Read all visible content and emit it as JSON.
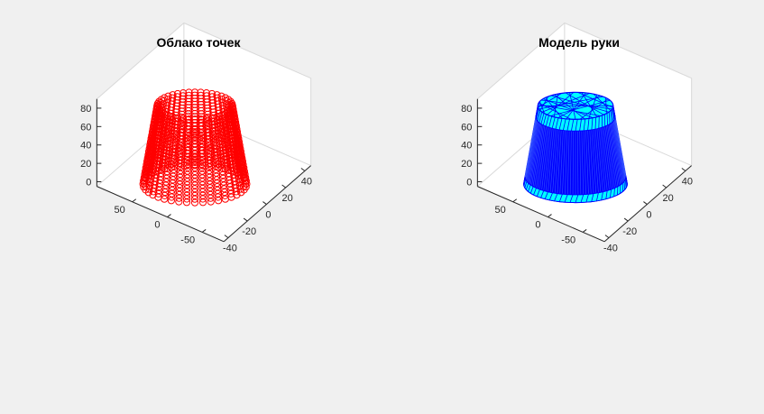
{
  "window": {
    "background": "#f0f0f0"
  },
  "colors": {
    "axes_bg": "#ffffff",
    "box": "#d9d9d9",
    "axis_line": "#262626",
    "points": "#ff0000",
    "mesh_fill": "#00ffff",
    "mesh_band": "#0000ff",
    "mesh_edge": "#0000ff"
  },
  "chart_data": [
    {
      "type": "scatter3d",
      "title": "Облако точек",
      "marker": "circle",
      "color": "#ff0000",
      "shape": "truncated cone point cloud (arm surface slices)",
      "z_ticks": [
        "0",
        "20",
        "40",
        "60",
        "80"
      ],
      "y_ticks": [
        "50",
        "0",
        "-50"
      ],
      "x_ticks": [
        "-40",
        "-20",
        "0",
        "20",
        "40"
      ],
      "xlim": [
        -45,
        45
      ],
      "ylim": [
        -65,
        65
      ],
      "zlim": [
        -5,
        90
      ],
      "geometry": {
        "r_bottom": 55,
        "r_top": 40,
        "z_bottom": 0,
        "z_top": 85,
        "rings": 25,
        "points_per_ring": 40
      }
    },
    {
      "type": "surface3d",
      "title": "Модель руки",
      "color": "#00ffff",
      "edge_color": "#0000ff",
      "shape": "triangulated truncated cone (arm model)",
      "z_ticks": [
        "0",
        "20",
        "40",
        "60",
        "80"
      ],
      "y_ticks": [
        "50",
        "0",
        "-50"
      ],
      "x_ticks": [
        "-40",
        "-20",
        "0",
        "20",
        "40"
      ],
      "xlim": [
        -45,
        45
      ],
      "ylim": [
        -65,
        65
      ],
      "zlim": [
        -5,
        90
      ],
      "geometry": {
        "r_bottom": 55,
        "r_top": 40,
        "z_bottom": 0,
        "z_top": 85,
        "rings": 25,
        "points_per_ring": 40
      }
    }
  ]
}
